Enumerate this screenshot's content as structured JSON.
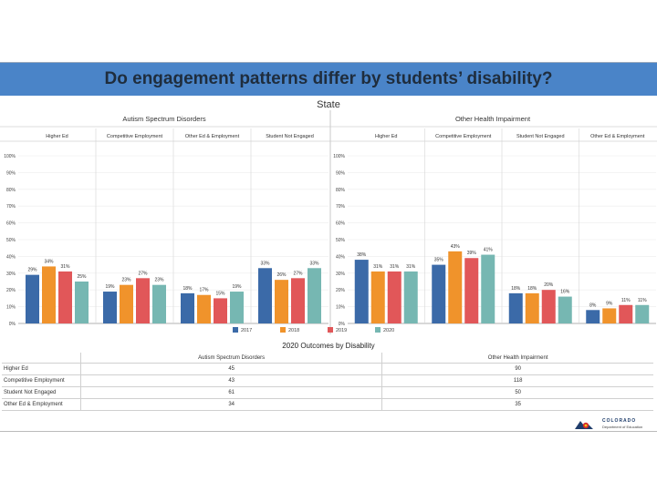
{
  "slide": {
    "title": "Do engagement patterns differ by students’ disability?",
    "subtitle": "State"
  },
  "colors": {
    "2017": "#3b6aa8",
    "2018": "#f0932b",
    "2019": "#e15759",
    "2020": "#76b7b2",
    "banner": "#4a84c8"
  },
  "chart_data": [
    {
      "type": "bar",
      "title": "Autism Spectrum Disorders",
      "categories": [
        "Higher Ed",
        "Competitive Employment",
        "Other Ed & Employment",
        "Student Not Engaged"
      ],
      "series": [
        {
          "name": "2017",
          "values": [
            29,
            19,
            18,
            33
          ]
        },
        {
          "name": "2018",
          "values": [
            34,
            23,
            17,
            26
          ]
        },
        {
          "name": "2019",
          "values": [
            31,
            27,
            15,
            27
          ]
        },
        {
          "name": "2020",
          "values": [
            25,
            23,
            19,
            33
          ]
        }
      ],
      "ylim": [
        0,
        100
      ],
      "yticks": [
        "0%",
        "10%",
        "20%",
        "30%",
        "40%",
        "50%",
        "60%",
        "70%",
        "80%",
        "90%",
        "100%"
      ],
      "labels": [
        [
          "29%",
          "34%",
          "31%",
          "25%"
        ],
        [
          "19%",
          "23%",
          "27%",
          "23%"
        ],
        [
          "18%",
          "17%",
          "15%",
          "19%"
        ],
        [
          "33%",
          "26%",
          "27%",
          "33%"
        ]
      ]
    },
    {
      "type": "bar",
      "title": "Other Health Impairment",
      "categories": [
        "Higher Ed",
        "Competitive Employment",
        "Student Not Engaged",
        "Other Ed & Employment"
      ],
      "series": [
        {
          "name": "2017",
          "values": [
            38,
            35,
            18,
            8
          ]
        },
        {
          "name": "2018",
          "values": [
            31,
            43,
            18,
            9
          ]
        },
        {
          "name": "2019",
          "values": [
            31,
            39,
            20,
            11
          ]
        },
        {
          "name": "2020",
          "values": [
            31,
            41,
            16,
            11
          ]
        }
      ],
      "ylim": [
        0,
        100
      ],
      "yticks": [
        "0%",
        "10%",
        "20%",
        "30%",
        "40%",
        "50%",
        "60%",
        "70%",
        "80%",
        "90%",
        "100%"
      ],
      "labels": [
        [
          "38%",
          "31%",
          "31%",
          "31%"
        ],
        [
          "35%",
          "43%",
          "39%",
          "41%"
        ],
        [
          "18%",
          "18%",
          "20%",
          "16%"
        ],
        [
          "8%",
          "9%",
          "11%",
          "11%"
        ]
      ]
    }
  ],
  "legend": [
    "2017",
    "2018",
    "2019",
    "2020"
  ],
  "outcomes_table": {
    "title": "2020 Outcomes by Disability",
    "columns": [
      "Autism Spectrum Disorders",
      "Other Health Impairment"
    ],
    "rows": [
      {
        "label": "Higher Ed",
        "values": [
          "45",
          "90"
        ]
      },
      {
        "label": "Competitive Employment",
        "values": [
          "43",
          "118"
        ]
      },
      {
        "label": "Student Not Engaged",
        "values": [
          "61",
          "50"
        ]
      },
      {
        "label": "Other Ed & Employment",
        "values": [
          "34",
          "35"
        ]
      }
    ]
  },
  "logo": {
    "org": "COLORADO",
    "dept": "Department of Education"
  }
}
